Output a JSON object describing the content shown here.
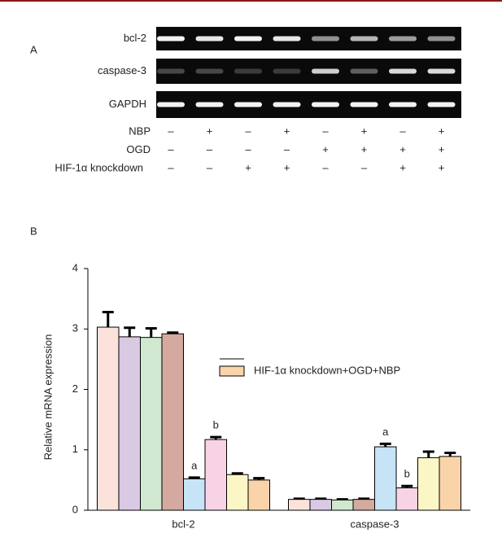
{
  "panel_a": {
    "label": "A",
    "genes": [
      "bcl-2",
      "caspase-3",
      "GAPDH"
    ],
    "conditions": [
      {
        "name": "NBP",
        "signs": [
          "–",
          "+",
          "–",
          "+",
          "–",
          "+",
          "–",
          "+"
        ]
      },
      {
        "name": "OGD",
        "signs": [
          "–",
          "–",
          "–",
          "–",
          "+",
          "+",
          "+",
          "+"
        ]
      },
      {
        "name": "HIF-1α knockdown",
        "signs": [
          "–",
          "–",
          "+",
          "+",
          "–",
          "–",
          "+",
          "+"
        ]
      }
    ]
  },
  "chart_data": {
    "type": "bar",
    "panel_label": "B",
    "ylabel": "Relative mRNA expression",
    "categories": [
      "bcl-2",
      "caspase-3"
    ],
    "series": [
      {
        "name": null,
        "color": "#fbe3dc",
        "values": [
          3.03,
          0.18
        ],
        "errors": [
          0.25,
          0.01
        ]
      },
      {
        "name": null,
        "color": "#d9c9e3",
        "values": [
          2.87,
          0.18
        ],
        "errors": [
          0.15,
          0.01
        ]
      },
      {
        "name": null,
        "color": "#cfe8cf",
        "values": [
          2.86,
          0.17
        ],
        "errors": [
          0.15,
          0.01
        ]
      },
      {
        "name": null,
        "color": "#d4aaa0",
        "values": [
          2.92,
          0.18
        ],
        "errors": [
          0.02,
          0.01
        ]
      },
      {
        "name": null,
        "color": "#c6e4f6",
        "values": [
          0.52,
          1.05
        ],
        "errors": [
          0.02,
          0.05
        ],
        "marks": [
          "a",
          "a"
        ]
      },
      {
        "name": null,
        "color": "#f8d3e6",
        "values": [
          1.17,
          0.37
        ],
        "errors": [
          0.04,
          0.03
        ],
        "marks": [
          "b",
          "b"
        ]
      },
      {
        "name": null,
        "color": "#fbf6c6",
        "values": [
          0.59,
          0.87
        ],
        "errors": [
          0.02,
          0.1
        ]
      },
      {
        "name": "HIF-1α knockdown+OGD+NBP",
        "color": "#fad4a8",
        "values": [
          0.5,
          0.89
        ],
        "errors": [
          0.03,
          0.06
        ]
      }
    ],
    "ylim": [
      0,
      4
    ],
    "yticks": [
      0,
      1,
      2,
      3,
      4
    ],
    "grid": false
  }
}
